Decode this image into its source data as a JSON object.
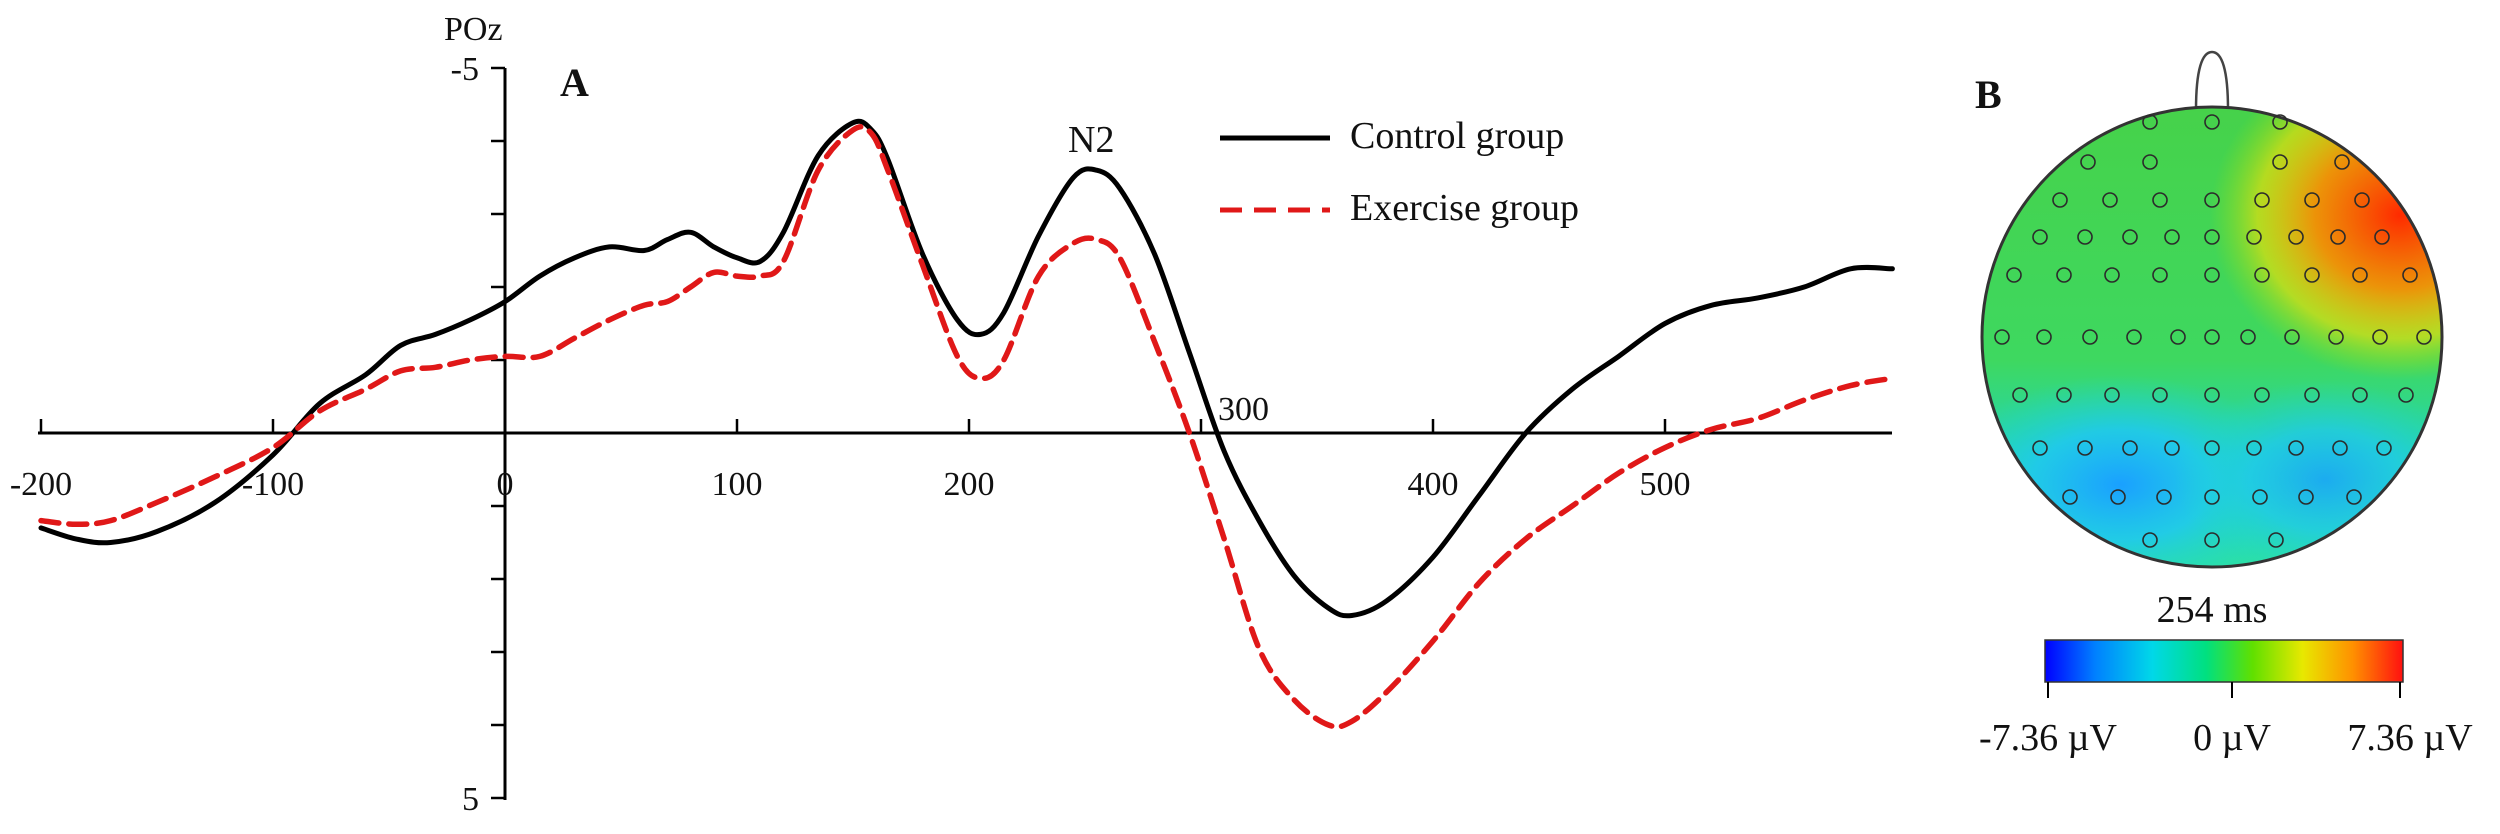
{
  "colors": {
    "control": "#000000",
    "exercise": "#e01818",
    "axis": "#000000",
    "colormap": [
      "#0000ff",
      "#00a0ff",
      "#00e0c0",
      "#00e060",
      "#60e000",
      "#e0e000",
      "#ff9000",
      "#ff2000"
    ]
  },
  "panel_a": {
    "letter": "A",
    "channel": "POz",
    "legend": {
      "control": "Control group",
      "exercise": "Exercise group"
    },
    "annotations": {
      "n2": "N2",
      "t300": "300"
    }
  },
  "panel_b": {
    "letter": "B",
    "time_label": "254 ms",
    "colorbar": {
      "min_label": "-7.36 µV",
      "mid_label": "0 µV",
      "max_label": "7.36 µV"
    }
  },
  "chart_data": [
    {
      "type": "line",
      "title": "",
      "xlabel": "",
      "ylabel": "POz",
      "xlim": [
        -200,
        600
      ],
      "ylim": [
        -5,
        5
      ],
      "y_inverted": true,
      "grid": false,
      "legend_position": "top-right",
      "x_ticks": [
        -200,
        -100,
        0,
        100,
        200,
        300,
        400,
        500
      ],
      "x_tick_labels": [
        "-200",
        "-100",
        "0",
        "100",
        "200",
        "300",
        "400",
        "500"
      ],
      "y_ticks": [
        -5,
        -4,
        -3,
        -2,
        -1,
        0,
        1,
        2,
        3,
        4,
        5
      ],
      "y_tick_labels": {
        "-5": "-5",
        "5": "5"
      },
      "series": [
        {
          "name": "Control group",
          "style": "solid",
          "x": [
            -200,
            -185,
            -170,
            -150,
            -125,
            -100,
            -80,
            -60,
            -45,
            -30,
            -15,
            0,
            15,
            30,
            45,
            60,
            70,
            80,
            90,
            100,
            110,
            120,
            135,
            150,
            158,
            165,
            180,
            195,
            205,
            215,
            230,
            245,
            255,
            265,
            280,
            295,
            310,
            325,
            340,
            355,
            365,
            380,
            400,
            420,
            440,
            460,
            480,
            500,
            520,
            540,
            560,
            580,
            598
          ],
          "values": [
            1.3,
            1.45,
            1.5,
            1.35,
            0.95,
            0.3,
            -0.4,
            -0.8,
            -1.2,
            -1.35,
            -1.55,
            -1.8,
            -2.15,
            -2.4,
            -2.55,
            -2.5,
            -2.65,
            -2.75,
            -2.55,
            -2.4,
            -2.35,
            -2.75,
            -3.8,
            -4.25,
            -4.15,
            -3.75,
            -2.45,
            -1.55,
            -1.35,
            -1.65,
            -2.7,
            -3.5,
            -3.6,
            -3.35,
            -2.45,
            -1.1,
            0.25,
            1.2,
            1.95,
            2.4,
            2.5,
            2.3,
            1.7,
            0.85,
            0.0,
            -0.6,
            -1.05,
            -1.5,
            -1.75,
            -1.85,
            -2.0,
            -2.25,
            -2.25
          ]
        },
        {
          "name": "Exercise group",
          "style": "dashed",
          "x": [
            -200,
            -185,
            -170,
            -150,
            -125,
            -100,
            -80,
            -60,
            -45,
            -30,
            -15,
            0,
            15,
            30,
            45,
            60,
            70,
            80,
            90,
            100,
            110,
            120,
            135,
            150,
            158,
            165,
            180,
            195,
            205,
            215,
            230,
            245,
            255,
            265,
            280,
            295,
            310,
            325,
            340,
            355,
            365,
            380,
            400,
            420,
            440,
            460,
            480,
            500,
            520,
            540,
            560,
            580,
            598
          ],
          "values": [
            1.2,
            1.25,
            1.2,
            0.95,
            0.6,
            0.2,
            -0.3,
            -0.6,
            -0.85,
            -0.9,
            -1.0,
            -1.05,
            -1.05,
            -1.3,
            -1.55,
            -1.75,
            -1.8,
            -2.0,
            -2.2,
            -2.15,
            -2.15,
            -2.35,
            -3.6,
            -4.15,
            -4.1,
            -3.6,
            -2.3,
            -1.05,
            -0.75,
            -1.0,
            -2.15,
            -2.6,
            -2.65,
            -2.4,
            -1.25,
            0.0,
            1.45,
            2.95,
            3.65,
            4.0,
            3.95,
            3.55,
            2.85,
            2.05,
            1.45,
            1.0,
            0.55,
            0.2,
            -0.05,
            -0.2,
            -0.45,
            -0.65,
            -0.75
          ]
        }
      ]
    },
    {
      "type": "heatmap",
      "title": "",
      "time": "254 ms",
      "colorbar_range": [
        -7.36,
        7.36
      ],
      "colorbar_tick_labels": [
        "-7.36 µV",
        "0 µV",
        "7.36 µV"
      ]
    }
  ]
}
